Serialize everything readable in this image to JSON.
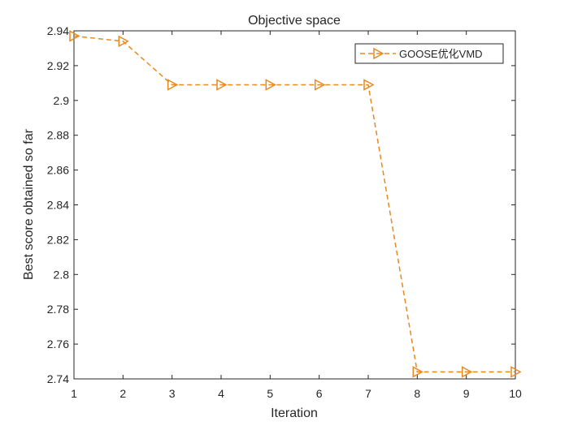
{
  "chart_data": {
    "type": "line",
    "title": "Objective space",
    "xlabel": "Iteration",
    "ylabel": "Best score obtained so far",
    "xlim": [
      1,
      10
    ],
    "ylim": [
      2.74,
      2.94
    ],
    "xticks": [
      "1",
      "2",
      "3",
      "4",
      "5",
      "6",
      "7",
      "8",
      "9",
      "10"
    ],
    "yticks": [
      "2.74",
      "2.76",
      "2.78",
      "2.8",
      "2.82",
      "2.84",
      "2.86",
      "2.88",
      "2.9",
      "2.92",
      "2.94"
    ],
    "grid": false,
    "legend_position": "top-right",
    "series": [
      {
        "name": "GOOSE优化VMD",
        "color": "#E8891E",
        "line_style": "dashed",
        "marker": "triangle-right",
        "x": [
          1,
          2,
          3,
          4,
          5,
          6,
          7,
          8,
          9,
          10
        ],
        "values": [
          2.937,
          2.934,
          2.909,
          2.909,
          2.909,
          2.909,
          2.909,
          2.744,
          2.744,
          2.744
        ]
      }
    ]
  }
}
